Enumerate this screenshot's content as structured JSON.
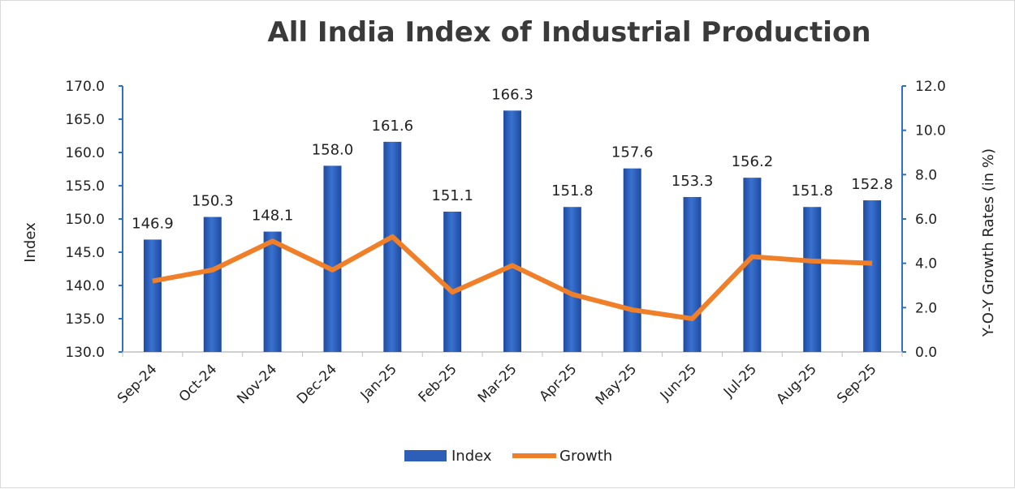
{
  "chart_data": {
    "type": "bar+line",
    "title": "All India Index of Industrial Production",
    "categories": [
      "Sep-24",
      "Oct-24",
      "Nov-24",
      "Dec-24",
      "Jan-25",
      "Feb-25",
      "Mar-25",
      "Apr-25",
      "May-25",
      "Jun-25",
      "Jul-25",
      "Aug-25",
      "Sep-25"
    ],
    "series": [
      {
        "name": "Index",
        "type": "bar",
        "axis": "left",
        "color": "#2e5fb8",
        "values": [
          146.9,
          150.3,
          148.1,
          158.0,
          161.6,
          151.1,
          166.3,
          151.8,
          157.6,
          153.3,
          156.2,
          151.8,
          152.8
        ],
        "labels": [
          "146.9",
          "150.3",
          "148.1",
          "158.0",
          "161.6",
          "151.1",
          "166.3",
          "151.8",
          "157.6",
          "153.3",
          "156.2",
          "151.8",
          "152.8"
        ]
      },
      {
        "name": "Growth",
        "type": "line",
        "axis": "right",
        "color": "#f07f2a",
        "values": [
          3.2,
          3.7,
          5.0,
          3.7,
          5.2,
          2.7,
          3.9,
          2.6,
          1.9,
          1.5,
          4.3,
          4.1,
          4.0
        ]
      }
    ],
    "ylabel": "Index",
    "y2label": "Y-O-Y Growth Rates (in %)",
    "ylim": [
      130,
      170
    ],
    "y2lim": [
      0,
      12
    ],
    "yticks": [
      "130.0",
      "135.0",
      "140.0",
      "145.0",
      "150.0",
      "155.0",
      "160.0",
      "165.0",
      "170.0"
    ],
    "y2ticks": [
      "0.0",
      "2.0",
      "4.0",
      "6.0",
      "8.0",
      "10.0",
      "12.0"
    ],
    "legend": "bottom",
    "grid": false
  }
}
